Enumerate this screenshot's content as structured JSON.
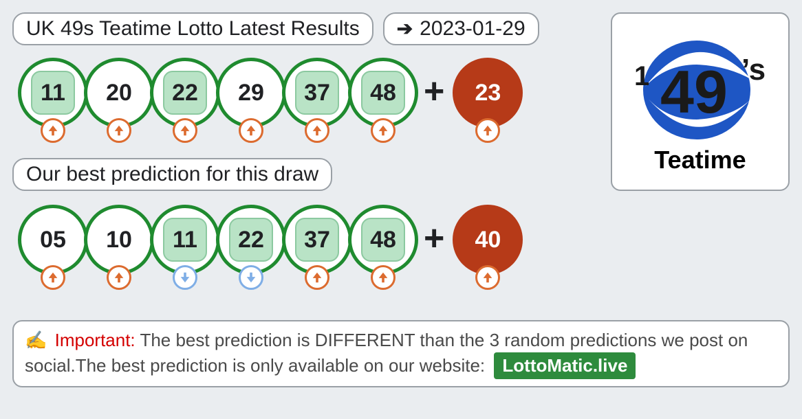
{
  "colors": {
    "page_bg": "#eaedf0",
    "pill_bg": "#ffffff",
    "pill_border": "#9aa0a6",
    "text_dark": "#202124",
    "ball_border_green": "#1f8b2f",
    "ball_bg_white": "#ffffff",
    "chip_bg": "#b9e3c6",
    "chip_border": "#8cc9a0",
    "bonus_bg": "#b63a18",
    "bonus_text": "#ffffff",
    "trend_up": "#dc6b2f",
    "trend_down": "#7faee6",
    "important_red": "#d40000",
    "site_badge_bg": "#2e8b3d",
    "logo_blue": "#1e56c4",
    "logo_text": "#1a1a1a"
  },
  "header": {
    "title": "UK 49s Teatime Lotto Latest Results",
    "date": "2023-01-29"
  },
  "results": {
    "balls": [
      {
        "num": "11",
        "highlighted": true,
        "trend": "up"
      },
      {
        "num": "20",
        "highlighted": false,
        "trend": "up"
      },
      {
        "num": "22",
        "highlighted": true,
        "trend": "up"
      },
      {
        "num": "29",
        "highlighted": false,
        "trend": "up"
      },
      {
        "num": "37",
        "highlighted": true,
        "trend": "up"
      },
      {
        "num": "48",
        "highlighted": true,
        "trend": "up"
      }
    ],
    "bonus": {
      "num": "23",
      "trend": "up"
    }
  },
  "prediction_label": "Our best prediction for this draw",
  "prediction": {
    "balls": [
      {
        "num": "05",
        "highlighted": false,
        "trend": "up"
      },
      {
        "num": "10",
        "highlighted": false,
        "trend": "up"
      },
      {
        "num": "11",
        "highlighted": true,
        "trend": "down"
      },
      {
        "num": "22",
        "highlighted": true,
        "trend": "down"
      },
      {
        "num": "37",
        "highlighted": true,
        "trend": "up"
      },
      {
        "num": "48",
        "highlighted": true,
        "trend": "up"
      }
    ],
    "bonus": {
      "num": "40",
      "trend": "up"
    }
  },
  "logo": {
    "top_text": "49",
    "apostrophe_s": "’s",
    "caption": "Teatime"
  },
  "notice": {
    "important_label": "Important:",
    "body": "The best prediction is DIFFERENT than the 3 random predictions we post on social.The best prediction is only available on our website:",
    "site": "LottoMatic.live"
  },
  "plus": "+"
}
